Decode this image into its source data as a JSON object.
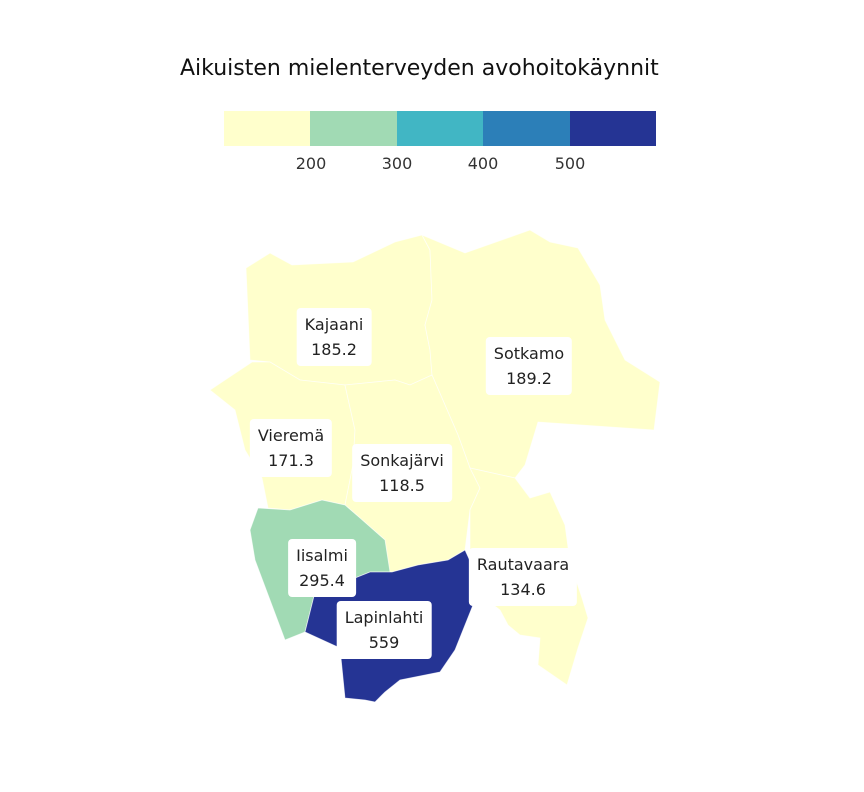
{
  "title": "Aikuisten mielenterveyden avohoitokäynnit",
  "legend": {
    "colors": [
      "#ffffcc",
      "#a1dab4",
      "#41b6c4",
      "#2c7fb8",
      "#253494"
    ],
    "ticks": [
      "200",
      "300",
      "400",
      "500"
    ]
  },
  "regions": [
    {
      "name": "Kajaani",
      "value": "185.2",
      "color": "#ffffcc"
    },
    {
      "name": "Sotkamo",
      "value": "189.2",
      "color": "#ffffcc"
    },
    {
      "name": "Vieremä",
      "value": "171.3",
      "color": "#ffffcc"
    },
    {
      "name": "Sonkajärvi",
      "value": "118.5",
      "color": "#ffffcc"
    },
    {
      "name": "Rautavaara",
      "value": "134.6",
      "color": "#ffffcc"
    },
    {
      "name": "Iisalmi",
      "value": "295.4",
      "color": "#a1dab4"
    },
    {
      "name": "Lapinlahti",
      "value": "559",
      "color": "#253494"
    }
  ]
}
